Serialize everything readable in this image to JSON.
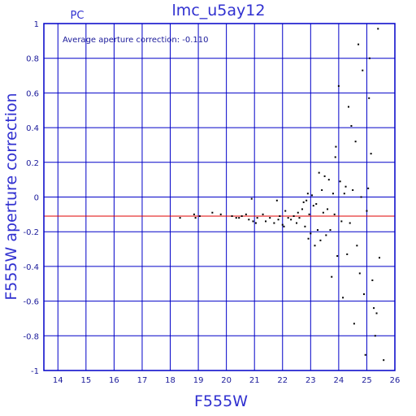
{
  "chart_data": {
    "type": "scatter",
    "title": "lmc_u5ay12",
    "corner_label": "PC",
    "annotation": "Average aperture correction: -0.110",
    "xlabel": "F555W",
    "ylabel": "F555W aperture correction",
    "xlim": [
      13.5,
      26
    ],
    "ylim": [
      -1,
      1
    ],
    "x_ticks": [
      "14",
      "15",
      "16",
      "17",
      "18",
      "19",
      "20",
      "21",
      "22",
      "23",
      "24",
      "25",
      "26"
    ],
    "y_ticks": [
      "-1",
      "-0.8",
      "-0.6",
      "-0.4",
      "-0.2",
      "0",
      "0.2",
      "0.4",
      "0.6",
      "0.8",
      "1"
    ],
    "grid": true,
    "reference_line": {
      "y": -0.11,
      "color": "#e00000"
    },
    "colors": {
      "frame": "#0000c8",
      "text": "#3030d0",
      "points": "#000000"
    },
    "points": [
      [
        18.35,
        -0.12
      ],
      [
        18.85,
        -0.1
      ],
      [
        18.9,
        -0.12
      ],
      [
        19.05,
        -0.11
      ],
      [
        19.5,
        -0.09
      ],
      [
        19.8,
        -0.1
      ],
      [
        20.2,
        -0.11
      ],
      [
        20.35,
        -0.12
      ],
      [
        20.45,
        -0.12
      ],
      [
        20.55,
        -0.11
      ],
      [
        20.7,
        -0.1
      ],
      [
        20.8,
        -0.13
      ],
      [
        20.9,
        -0.01
      ],
      [
        20.95,
        -0.14
      ],
      [
        21.05,
        -0.15
      ],
      [
        21.1,
        -0.12
      ],
      [
        21.3,
        -0.1
      ],
      [
        21.4,
        -0.14
      ],
      [
        21.55,
        -0.12
      ],
      [
        21.7,
        -0.15
      ],
      [
        21.8,
        -0.02
      ],
      [
        21.85,
        -0.13
      ],
      [
        21.9,
        -0.11
      ],
      [
        22.0,
        -0.16
      ],
      [
        22.05,
        -0.17
      ],
      [
        22.1,
        -0.08
      ],
      [
        22.2,
        -0.12
      ],
      [
        22.3,
        -0.13
      ],
      [
        22.4,
        -0.11
      ],
      [
        22.5,
        -0.15
      ],
      [
        22.55,
        -0.09
      ],
      [
        22.6,
        -0.12
      ],
      [
        22.7,
        -0.07
      ],
      [
        22.75,
        -0.03
      ],
      [
        22.8,
        -0.17
      ],
      [
        22.85,
        -0.02
      ],
      [
        22.9,
        0.02
      ],
      [
        22.92,
        -0.24
      ],
      [
        22.95,
        -0.1
      ],
      [
        23.0,
        -0.21
      ],
      [
        23.05,
        0.01
      ],
      [
        23.1,
        -0.05
      ],
      [
        23.15,
        -0.28
      ],
      [
        23.2,
        -0.04
      ],
      [
        23.25,
        -0.19
      ],
      [
        23.3,
        0.14
      ],
      [
        23.35,
        -0.25
      ],
      [
        23.4,
        0.04
      ],
      [
        23.45,
        -0.09
      ],
      [
        23.5,
        0.12
      ],
      [
        23.55,
        -0.22
      ],
      [
        23.6,
        -0.07
      ],
      [
        23.65,
        0.1
      ],
      [
        23.7,
        -0.19
      ],
      [
        23.75,
        -0.46
      ],
      [
        23.8,
        0.02
      ],
      [
        23.85,
        -0.1
      ],
      [
        23.88,
        0.23
      ],
      [
        23.9,
        0.29
      ],
      [
        23.95,
        -0.34
      ],
      [
        24.0,
        0.64
      ],
      [
        24.05,
        0.09
      ],
      [
        24.1,
        -0.14
      ],
      [
        24.15,
        -0.58
      ],
      [
        24.2,
        0.02
      ],
      [
        24.25,
        0.06
      ],
      [
        24.3,
        -0.33
      ],
      [
        24.35,
        0.52
      ],
      [
        24.4,
        -0.15
      ],
      [
        24.45,
        0.41
      ],
      [
        24.5,
        0.04
      ],
      [
        24.55,
        -0.73
      ],
      [
        24.6,
        0.32
      ],
      [
        24.65,
        -0.28
      ],
      [
        24.7,
        0.88
      ],
      [
        24.75,
        -0.44
      ],
      [
        24.8,
        0.0
      ],
      [
        24.85,
        0.73
      ],
      [
        24.9,
        -0.56
      ],
      [
        24.95,
        -0.91
      ],
      [
        25.0,
        -0.08
      ],
      [
        25.05,
        0.05
      ],
      [
        25.08,
        0.57
      ],
      [
        25.1,
        0.8
      ],
      [
        25.15,
        0.25
      ],
      [
        25.2,
        -0.48
      ],
      [
        25.25,
        -0.64
      ],
      [
        25.3,
        -0.8
      ],
      [
        25.35,
        -0.67
      ],
      [
        25.4,
        0.97
      ],
      [
        25.45,
        -0.35
      ],
      [
        25.6,
        -0.94
      ]
    ]
  }
}
